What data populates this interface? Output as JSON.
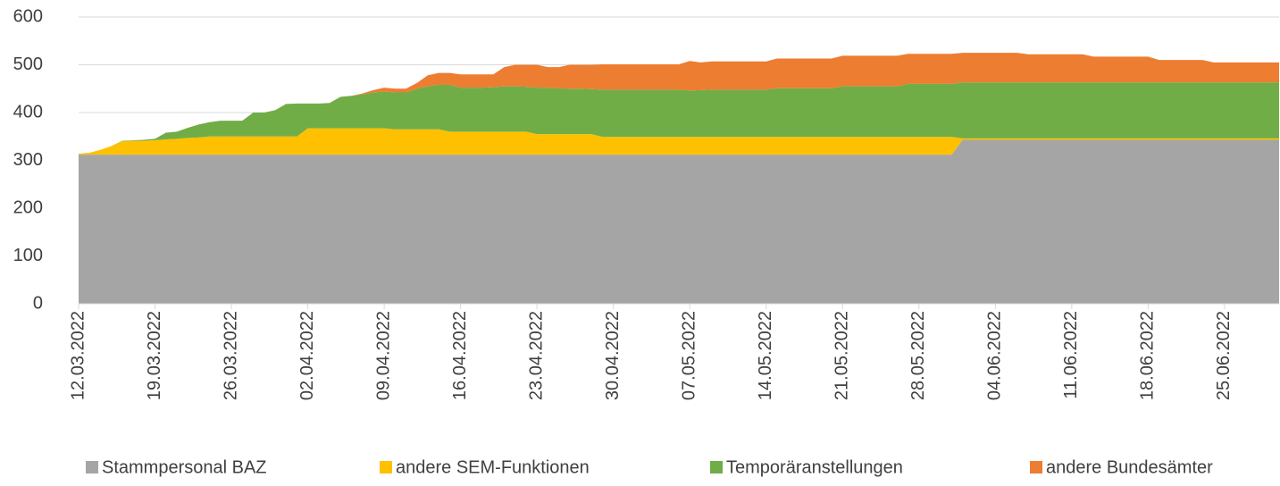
{
  "chart_data": {
    "type": "stacked_area",
    "categories": [
      "12.03.2022",
      null,
      null,
      null,
      null,
      null,
      null,
      "19.03.2022",
      null,
      null,
      null,
      null,
      null,
      null,
      "26.03.2022",
      null,
      null,
      null,
      null,
      null,
      null,
      "02.04.2022",
      null,
      null,
      null,
      null,
      null,
      null,
      "09.04.2022",
      null,
      null,
      null,
      null,
      null,
      null,
      "16.04.2022",
      null,
      null,
      null,
      null,
      null,
      null,
      "23.04.2022",
      null,
      null,
      null,
      null,
      null,
      null,
      "30.04.2022",
      null,
      null,
      null,
      null,
      null,
      null,
      "07.05.2022",
      null,
      null,
      null,
      null,
      null,
      null,
      "14.05.2022",
      null,
      null,
      null,
      null,
      null,
      null,
      "21.05.2022",
      null,
      null,
      null,
      null,
      null,
      null,
      "28.05.2022",
      null,
      null,
      null,
      null,
      null,
      null,
      "04.06.2022",
      null,
      null,
      null,
      null,
      null,
      null,
      "11.06.2022",
      null,
      null,
      null,
      null,
      null,
      null,
      "18.06.2022",
      null,
      null,
      null,
      null,
      null,
      null,
      "25.06.2022",
      null,
      null,
      null,
      null,
      null
    ],
    "series": [
      {
        "name": "Stammpersonal BAZ",
        "color": "#a5a5a5",
        "values": [
          312,
          312,
          312,
          312,
          312,
          312,
          312,
          312,
          312,
          312,
          312,
          312,
          312,
          312,
          312,
          312,
          312,
          312,
          312,
          312,
          312,
          312,
          312,
          312,
          312,
          312,
          312,
          312,
          312,
          312,
          312,
          312,
          312,
          312,
          312,
          312,
          312,
          312,
          312,
          312,
          312,
          312,
          312,
          312,
          312,
          312,
          312,
          312,
          312,
          312,
          312,
          312,
          312,
          312,
          312,
          312,
          312,
          312,
          312,
          312,
          312,
          312,
          312,
          312,
          312,
          312,
          312,
          312,
          312,
          312,
          312,
          312,
          312,
          312,
          312,
          312,
          312,
          312,
          312,
          312,
          312,
          343,
          343,
          343,
          343,
          343,
          343,
          343,
          343,
          343,
          343,
          343,
          343,
          343,
          343,
          343,
          343,
          343,
          343,
          343,
          343,
          343,
          343,
          343,
          343,
          343,
          343,
          343,
          343,
          343,
          343
        ]
      },
      {
        "name": "andere SEM-Funktionen",
        "color": "#ffc000",
        "values": [
          2,
          4,
          10,
          18,
          28,
          29,
          29,
          30,
          32,
          33,
          35,
          36,
          38,
          38,
          38,
          38,
          38,
          38,
          38,
          38,
          38,
          55,
          55,
          55,
          55,
          55,
          55,
          55,
          55,
          53,
          53,
          53,
          53,
          53,
          48,
          48,
          48,
          48,
          48,
          48,
          48,
          48,
          43,
          43,
          43,
          43,
          43,
          43,
          37,
          37,
          37,
          37,
          37,
          37,
          37,
          37,
          37,
          37,
          37,
          37,
          37,
          37,
          37,
          37,
          37,
          37,
          37,
          37,
          37,
          37,
          37,
          37,
          37,
          37,
          37,
          37,
          37,
          37,
          37,
          37,
          37,
          3,
          3,
          3,
          3,
          3,
          3,
          3,
          3,
          3,
          3,
          3,
          3,
          3,
          3,
          3,
          3,
          3,
          3,
          3,
          3,
          3,
          3,
          3,
          3,
          3,
          3,
          3,
          3,
          3,
          3
        ]
      },
      {
        "name": "Temporäranstellungen",
        "color": "#70ad47",
        "values": [
          0,
          0,
          0,
          0,
          1,
          1,
          2,
          3,
          14,
          15,
          21,
          27,
          30,
          33,
          33,
          33,
          50,
          50,
          55,
          68,
          69,
          52,
          52,
          53,
          66,
          68,
          71,
          75,
          77,
          77,
          77,
          85,
          90,
          93,
          98,
          92,
          92,
          92,
          93,
          95,
          95,
          94,
          97,
          97,
          96,
          95,
          95,
          94,
          99,
          99,
          99,
          99,
          99,
          99,
          99,
          99,
          97,
          98,
          99,
          99,
          99,
          99,
          99,
          99,
          102,
          102,
          102,
          102,
          102,
          102,
          106,
          106,
          106,
          106,
          106,
          106,
          111,
          111,
          111,
          111,
          111,
          117,
          117,
          117,
          117,
          117,
          117,
          117,
          117,
          117,
          117,
          117,
          117,
          117,
          117,
          117,
          117,
          117,
          117,
          117,
          117,
          117,
          117,
          117,
          117,
          117,
          117,
          117,
          117,
          117,
          117
        ]
      },
      {
        "name": "andere Bundesämter",
        "color": "#ed7d31",
        "values": [
          0,
          0,
          0,
          0,
          0,
          0,
          0,
          0,
          0,
          0,
          0,
          0,
          0,
          0,
          0,
          0,
          0,
          0,
          0,
          0,
          0,
          0,
          0,
          0,
          0,
          0,
          2,
          5,
          8,
          8,
          8,
          12,
          23,
          25,
          25,
          28,
          28,
          28,
          27,
          40,
          45,
          46,
          48,
          43,
          44,
          50,
          50,
          51,
          53,
          53,
          53,
          53,
          53,
          53,
          53,
          53,
          62,
          58,
          59,
          59,
          59,
          59,
          59,
          59,
          62,
          62,
          62,
          62,
          62,
          62,
          64,
          64,
          64,
          64,
          64,
          64,
          63,
          63,
          63,
          63,
          63,
          62,
          62,
          62,
          62,
          62,
          62,
          59,
          59,
          59,
          59,
          59,
          59,
          54,
          54,
          54,
          54,
          54,
          54,
          47,
          47,
          47,
          47,
          47,
          42,
          42,
          42,
          42,
          42,
          42,
          42
        ]
      }
    ],
    "ylim": [
      0,
      600
    ],
    "yticks": [
      0,
      100,
      200,
      300,
      400,
      500,
      600
    ],
    "grid": true,
    "legend": "bottom"
  }
}
